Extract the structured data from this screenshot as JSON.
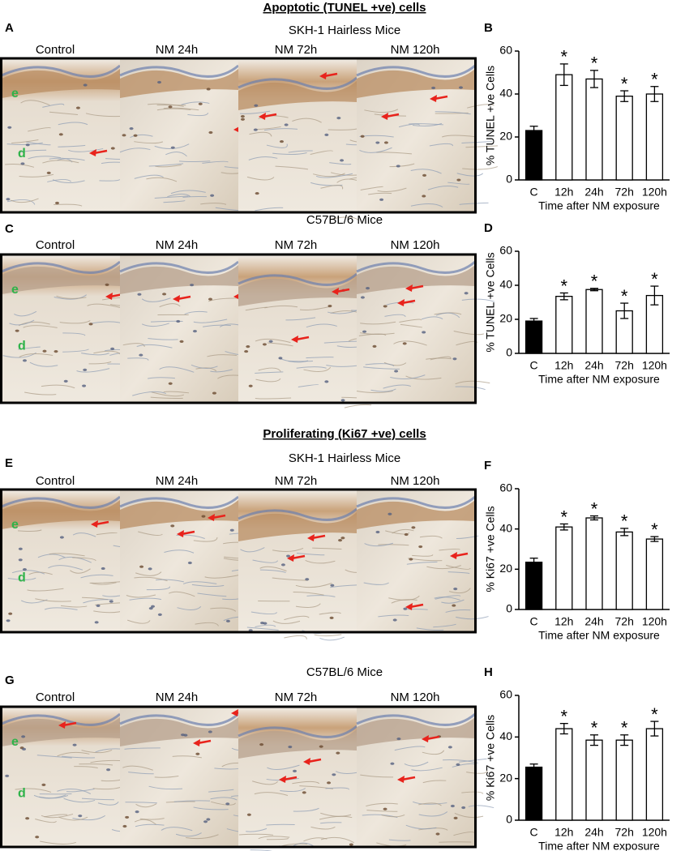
{
  "figure": {
    "sections": [
      {
        "title": "Apoptotic (TUNEL +ve) cells"
      },
      {
        "title": "Proliferating (Ki67 +ve) cells"
      }
    ],
    "panels": [
      {
        "letter": "A",
        "subtitle": "SKH-1 Hairless Mice",
        "columns": [
          "Control",
          "NM 24h",
          "NM 72h",
          "NM 120h"
        ],
        "tissue_labels": [
          "e",
          "d"
        ]
      },
      {
        "letter": "C",
        "subtitle": "C57BL/6 Mice",
        "columns": [
          "Control",
          "NM 24h",
          "NM 72h",
          "NM 120h"
        ],
        "tissue_labels": [
          "e",
          "d"
        ]
      },
      {
        "letter": "E",
        "subtitle": "SKH-1 Hairless Mice",
        "columns": [
          "Control",
          "NM 24h",
          "NM 72h",
          "NM 120h"
        ],
        "tissue_labels": [
          "e",
          "d"
        ]
      },
      {
        "letter": "G",
        "subtitle": "C57BL/6 Mice",
        "columns": [
          "Control",
          "NM 24h",
          "NM 72h",
          "NM 120h"
        ],
        "tissue_labels": [
          "e",
          "d"
        ]
      }
    ]
  },
  "chart_data": [
    {
      "type": "bar",
      "panel": "B",
      "ylabel": "% TUNEL  +ve Cells",
      "xlabel": "Time after NM exposure",
      "categories": [
        "C",
        "12h",
        "24h",
        "72h",
        "120h"
      ],
      "values": [
        23,
        49,
        47,
        39,
        40
      ],
      "errors": [
        2,
        5,
        4,
        2.5,
        3.5
      ],
      "colors": [
        "#000000",
        "#ffffff",
        "#ffffff",
        "#ffffff",
        "#ffffff"
      ],
      "markers": [
        null,
        "*",
        "*",
        "*",
        "*"
      ],
      "ylim": [
        0,
        60
      ],
      "yticks": [
        0,
        20,
        40,
        60
      ]
    },
    {
      "type": "bar",
      "panel": "D",
      "ylabel": "% TUNEL  +ve Cells",
      "xlabel": "Time after NM exposure",
      "categories": [
        "C",
        "12h",
        "24h",
        "72h",
        "120h"
      ],
      "values": [
        19,
        33.5,
        37.5,
        25,
        34
      ],
      "errors": [
        1.5,
        2,
        0.7,
        4.5,
        5.5
      ],
      "colors": [
        "#000000",
        "#ffffff",
        "#ffffff",
        "#ffffff",
        "#ffffff"
      ],
      "markers": [
        null,
        "*",
        "*",
        "*",
        "*"
      ],
      "ylim": [
        0,
        60
      ],
      "yticks": [
        0,
        20,
        40,
        60
      ]
    },
    {
      "type": "bar",
      "panel": "F",
      "ylabel": "% Ki67 +ve Cells",
      "xlabel": "Time after NM exposure",
      "categories": [
        "C",
        "12h",
        "24h",
        "72h",
        "120h"
      ],
      "values": [
        23.5,
        41,
        45.5,
        38.5,
        35
      ],
      "errors": [
        2,
        1.5,
        1,
        1.8,
        1.2
      ],
      "colors": [
        "#000000",
        "#ffffff",
        "#ffffff",
        "#ffffff",
        "#ffffff"
      ],
      "markers": [
        null,
        "*",
        "*",
        "*",
        "*"
      ],
      "ylim": [
        0,
        60
      ],
      "yticks": [
        0,
        20,
        40,
        60
      ]
    },
    {
      "type": "bar",
      "panel": "H",
      "ylabel": "% Ki67 +ve Cells",
      "xlabel": "Time after NM exposure",
      "categories": [
        "C",
        "12h",
        "24h",
        "72h",
        "120h"
      ],
      "values": [
        25.5,
        44,
        38.5,
        38.5,
        44
      ],
      "errors": [
        1.5,
        2.5,
        2.5,
        2.5,
        3.5
      ],
      "colors": [
        "#000000",
        "#ffffff",
        "#ffffff",
        "#ffffff",
        "#ffffff"
      ],
      "markers": [
        null,
        "*",
        "*",
        "*",
        "*"
      ],
      "ylim": [
        0,
        60
      ],
      "yticks": [
        0,
        20,
        40,
        60
      ]
    }
  ]
}
